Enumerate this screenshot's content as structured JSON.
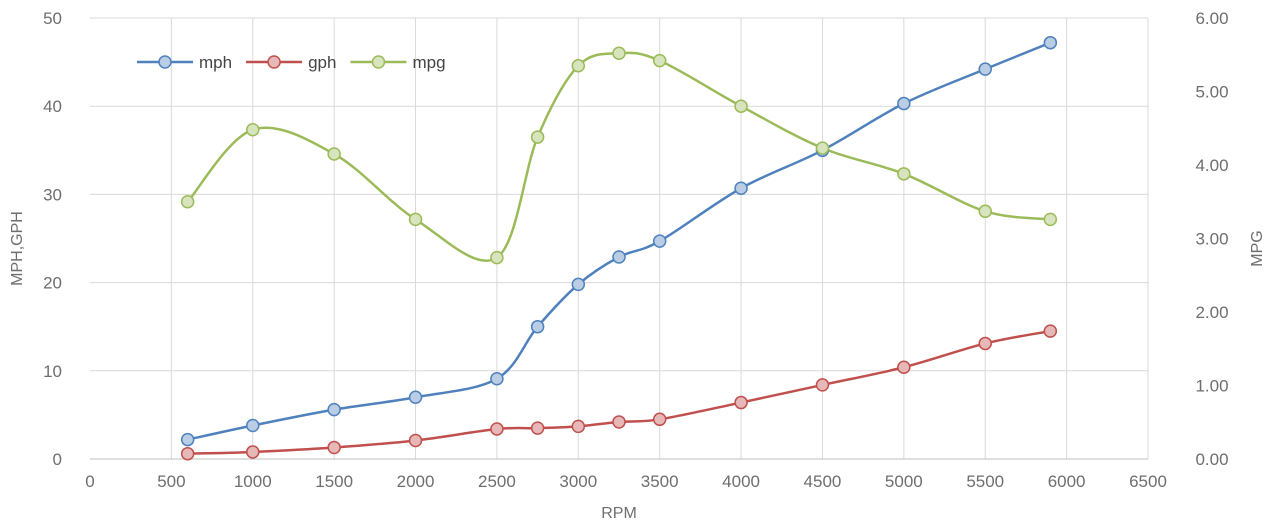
{
  "chart_data": {
    "type": "line",
    "title": "",
    "xlabel": "RPM",
    "ylabel": "MPH,GPH",
    "y2label": "MPG",
    "xlim": [
      0,
      6500
    ],
    "ylim": [
      0,
      50
    ],
    "y2lim": [
      0,
      6
    ],
    "x_ticks": [
      "0",
      "500",
      "1000",
      "1500",
      "2000",
      "2500",
      "3000",
      "3500",
      "4000",
      "4500",
      "5000",
      "5500",
      "6000",
      "6500"
    ],
    "y_ticks": [
      "0",
      "10",
      "20",
      "30",
      "40",
      "50"
    ],
    "y2_ticks": [
      "0.00",
      "1.00",
      "2.00",
      "3.00",
      "4.00",
      "5.00",
      "6.00"
    ],
    "grid": true,
    "legend_position": "top-left",
    "series": [
      {
        "name": "mph",
        "axis": "left",
        "color": "#4f81bd",
        "marker_fill": "#b9cde5",
        "x": [
          600,
          1000,
          1500,
          2000,
          2500,
          2750,
          3000,
          3250,
          3500,
          4000,
          4500,
          5000,
          5500,
          5900
        ],
        "y": [
          2.2,
          3.8,
          5.6,
          7.0,
          9.1,
          15.0,
          19.8,
          22.9,
          24.7,
          30.7,
          35.0,
          40.3,
          44.2,
          47.2
        ]
      },
      {
        "name": "gph",
        "axis": "left",
        "color": "#c0504d",
        "marker_fill": "#e6b9b8",
        "x": [
          600,
          1000,
          1500,
          2000,
          2500,
          2750,
          3000,
          3250,
          3500,
          4000,
          4500,
          5000,
          5500,
          5900
        ],
        "y": [
          0.6,
          0.8,
          1.3,
          2.1,
          3.4,
          3.5,
          3.7,
          4.2,
          4.5,
          6.4,
          8.4,
          10.4,
          13.1,
          14.5
        ]
      },
      {
        "name": "mpg",
        "axis": "right",
        "color": "#9bbb59",
        "marker_fill": "#d7e4bd",
        "x": [
          600,
          1000,
          1500,
          2000,
          2500,
          2750,
          3000,
          3250,
          3500,
          4000,
          4500,
          5000,
          5500,
          5900
        ],
        "y": [
          3.5,
          4.48,
          4.15,
          3.26,
          2.74,
          4.38,
          5.35,
          5.52,
          5.42,
          4.8,
          4.23,
          3.88,
          3.37,
          3.26
        ]
      }
    ]
  }
}
